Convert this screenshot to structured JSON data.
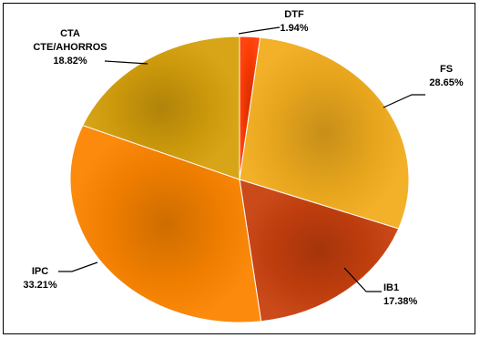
{
  "chart_data": {
    "type": "pie",
    "title": "",
    "legend": "none",
    "slices": [
      {
        "name": "DTF",
        "label_lines": [
          "DTF"
        ],
        "value": 1.94,
        "value_label": "1.94%",
        "color": "#ff3a00"
      },
      {
        "name": "FS",
        "label_lines": [
          "FS"
        ],
        "value": 28.65,
        "value_label": "28.65%",
        "color": "#f2ad1e"
      },
      {
        "name": "IB1",
        "label_lines": [
          "IB1"
        ],
        "value": 17.38,
        "value_label": "17.38%",
        "color": "#c8400e"
      },
      {
        "name": "IPC",
        "label_lines": [
          "IPC"
        ],
        "value": 33.21,
        "value_label": "33.21%",
        "color": "#fb8400"
      },
      {
        "name": "CTA CTE/AHORROS",
        "label_lines": [
          "CTA",
          "CTE/AHORROS"
        ],
        "value": 18.82,
        "value_label": "18.82%",
        "color": "#d6a00c"
      }
    ]
  }
}
